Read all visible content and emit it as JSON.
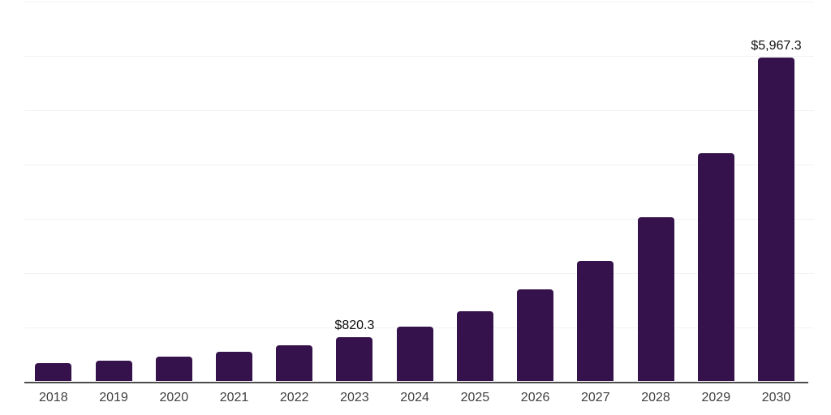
{
  "chart_data": {
    "type": "bar",
    "title": "",
    "xlabel": "",
    "ylabel": "",
    "categories": [
      "2018",
      "2019",
      "2020",
      "2021",
      "2022",
      "2023",
      "2024",
      "2025",
      "2026",
      "2027",
      "2028",
      "2029",
      "2030"
    ],
    "values": [
      338,
      383,
      458,
      543,
      667,
      820.3,
      1014,
      1298,
      1701,
      2223,
      3028,
      4207,
      5967.3
    ],
    "value_labels": [
      {
        "category": "2023",
        "text": "$820.3"
      },
      {
        "category": "2030",
        "text": "$5,967.3"
      }
    ],
    "ylim": [
      0,
      7000
    ],
    "gridline_step": 1000,
    "grid": "horizontal",
    "legend_position": "none",
    "colors": {
      "bar": "#35124B",
      "gridline": "#F2F2F2",
      "axis_line": "#4D4D4D",
      "tick_label": "#404040",
      "value_label": "#0D0D0D",
      "background": "#FFFFFF"
    }
  }
}
